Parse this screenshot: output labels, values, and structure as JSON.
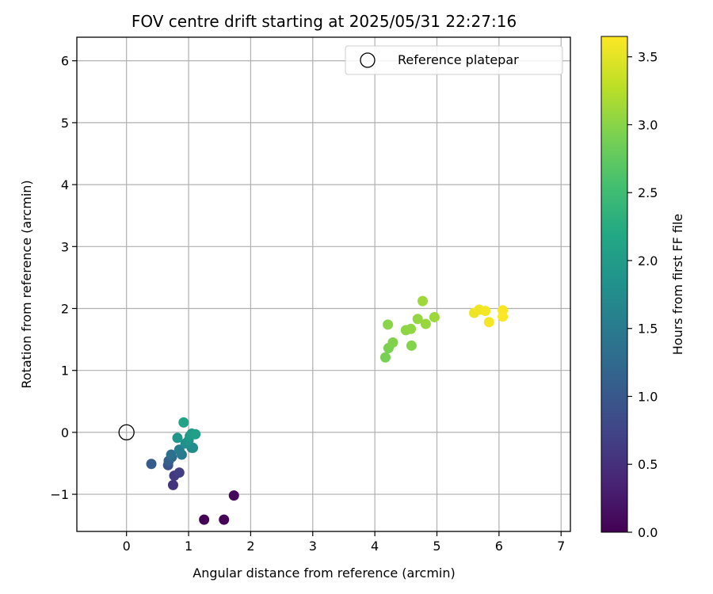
{
  "chart_data": {
    "type": "scatter",
    "title": "FOV centre drift starting at 2025/05/31 22:27:16",
    "xlabel": "Angular distance from reference (arcmin)",
    "ylabel": "Rotation from reference (arcmin)",
    "xlim": [
      -0.8,
      7.15
    ],
    "ylim": [
      -1.6,
      6.38
    ],
    "xticks": [
      0,
      1,
      2,
      3,
      4,
      5,
      6,
      7
    ],
    "yticks": [
      -1,
      0,
      1,
      2,
      3,
      4,
      5,
      6
    ],
    "grid": true,
    "legend": {
      "position": "top-right",
      "entries": [
        "Reference platepar"
      ]
    },
    "reference_point": {
      "name": "Reference platepar",
      "x": 0,
      "y": 0,
      "marker": "open-circle"
    },
    "colorbar": {
      "label": "Hours from first FF file",
      "colormap": "viridis",
      "range": [
        0.0,
        3.65
      ],
      "ticks": [
        "0.0",
        "0.5",
        "1.0",
        "1.5",
        "2.0",
        "2.5",
        "3.0",
        "3.5"
      ]
    },
    "series": [
      {
        "points": [
          {
            "x": 1.25,
            "y": -1.41,
            "t": 0.02
          },
          {
            "x": 1.57,
            "y": -1.41,
            "t": 0.05
          },
          {
            "x": 1.73,
            "y": -1.02,
            "t": 0.08
          },
          {
            "x": 0.75,
            "y": -0.85,
            "t": 0.55
          },
          {
            "x": 0.77,
            "y": -0.7,
            "t": 0.6
          },
          {
            "x": 0.85,
            "y": -0.65,
            "t": 0.65
          },
          {
            "x": 0.67,
            "y": -0.53,
            "t": 0.95
          },
          {
            "x": 0.4,
            "y": -0.51,
            "t": 1.05
          },
          {
            "x": 0.68,
            "y": -0.46,
            "t": 1.1
          },
          {
            "x": 0.73,
            "y": -0.4,
            "t": 1.2
          },
          {
            "x": 0.72,
            "y": -0.36,
            "t": 1.35
          },
          {
            "x": 0.89,
            "y": -0.36,
            "t": 1.5
          },
          {
            "x": 0.85,
            "y": -0.28,
            "t": 1.55
          },
          {
            "x": 1.05,
            "y": -0.25,
            "t": 1.7
          },
          {
            "x": 1.07,
            "y": -0.25,
            "t": 1.75
          },
          {
            "x": 0.95,
            "y": -0.18,
            "t": 1.8
          },
          {
            "x": 1.0,
            "y": -0.13,
            "t": 1.85
          },
          {
            "x": 0.82,
            "y": -0.09,
            "t": 1.9
          },
          {
            "x": 1.02,
            "y": -0.06,
            "t": 1.95
          },
          {
            "x": 1.05,
            "y": -0.02,
            "t": 2.0
          },
          {
            "x": 1.11,
            "y": -0.03,
            "t": 2.05
          },
          {
            "x": 0.92,
            "y": 0.16,
            "t": 2.1
          },
          {
            "x": 4.17,
            "y": 1.21,
            "t": 2.9
          },
          {
            "x": 4.22,
            "y": 1.36,
            "t": 2.92
          },
          {
            "x": 4.29,
            "y": 1.45,
            "t": 2.95
          },
          {
            "x": 4.59,
            "y": 1.4,
            "t": 2.97
          },
          {
            "x": 4.21,
            "y": 1.74,
            "t": 3.0
          },
          {
            "x": 4.5,
            "y": 1.65,
            "t": 3.02
          },
          {
            "x": 4.58,
            "y": 1.67,
            "t": 3.04
          },
          {
            "x": 4.69,
            "y": 1.83,
            "t": 3.06
          },
          {
            "x": 4.82,
            "y": 1.75,
            "t": 3.08
          },
          {
            "x": 4.96,
            "y": 1.86,
            "t": 3.1
          },
          {
            "x": 4.77,
            "y": 2.12,
            "t": 3.12
          },
          {
            "x": 5.6,
            "y": 1.93,
            "t": 3.55
          },
          {
            "x": 5.68,
            "y": 1.98,
            "t": 3.57
          },
          {
            "x": 5.78,
            "y": 1.96,
            "t": 3.59
          },
          {
            "x": 5.84,
            "y": 1.78,
            "t": 3.6
          },
          {
            "x": 6.06,
            "y": 1.97,
            "t": 3.62
          },
          {
            "x": 6.06,
            "y": 1.87,
            "t": 3.64
          }
        ]
      }
    ]
  }
}
